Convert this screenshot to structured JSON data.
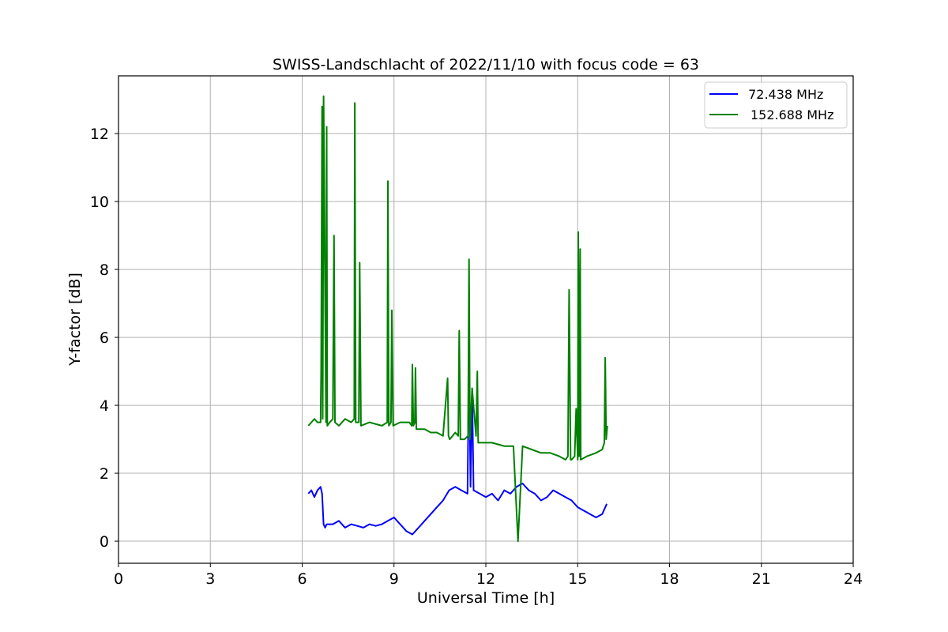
{
  "chart_data": {
    "type": "line",
    "title": "SWISS-Landschlacht of 2022/11/10 with focus code = 63",
    "xlabel": "Universal Time [h]",
    "ylabel": "Y-factor [dB]",
    "xlim": [
      0,
      24
    ],
    "ylim": [
      -0.65,
      13.7
    ],
    "xticks": [
      0,
      3,
      6,
      9,
      12,
      15,
      18,
      21,
      24
    ],
    "xtick_labels": [
      "0",
      "3",
      "6",
      "9",
      "12",
      "15",
      "18",
      "21",
      "24"
    ],
    "yticks": [
      0,
      2,
      4,
      6,
      8,
      10,
      12
    ],
    "ytick_labels": [
      "0",
      "2",
      "4",
      "6",
      "8",
      "10",
      "12"
    ],
    "grid": true,
    "legend_position": "top-right",
    "series": [
      {
        "name": " 72.438 MHz",
        "color": "#0000ff",
        "x": [
          6.2,
          6.3,
          6.4,
          6.5,
          6.6,
          6.65,
          6.7,
          6.75,
          6.8,
          7.0,
          7.2,
          7.4,
          7.6,
          7.8,
          8.0,
          8.2,
          8.4,
          8.6,
          8.8,
          9.0,
          9.2,
          9.4,
          9.6,
          9.8,
          10.0,
          10.2,
          10.4,
          10.6,
          10.8,
          11.0,
          11.2,
          11.4,
          11.45,
          11.5,
          11.55,
          11.6,
          11.8,
          12.0,
          12.2,
          12.4,
          12.6,
          12.8,
          13.0,
          13.2,
          13.4,
          13.6,
          13.8,
          14.0,
          14.2,
          14.4,
          14.6,
          14.8,
          15.0,
          15.2,
          15.4,
          15.6,
          15.8,
          15.95
        ],
        "y": [
          1.4,
          1.5,
          1.3,
          1.5,
          1.6,
          1.4,
          0.5,
          0.4,
          0.5,
          0.5,
          0.6,
          0.4,
          0.5,
          0.45,
          0.4,
          0.5,
          0.45,
          0.5,
          0.6,
          0.7,
          0.5,
          0.3,
          0.2,
          0.4,
          0.6,
          0.8,
          1.0,
          1.2,
          1.5,
          1.6,
          1.5,
          1.4,
          5.6,
          1.6,
          4.5,
          1.5,
          1.4,
          1.3,
          1.4,
          1.2,
          1.5,
          1.4,
          1.6,
          1.7,
          1.5,
          1.4,
          1.2,
          1.3,
          1.5,
          1.4,
          1.3,
          1.2,
          1.0,
          0.9,
          0.8,
          0.7,
          0.8,
          1.1
        ]
      },
      {
        "name": "152.688 MHz",
        "color": "#008000",
        "x": [
          6.2,
          6.3,
          6.4,
          6.5,
          6.6,
          6.62,
          6.65,
          6.67,
          6.7,
          6.78,
          6.8,
          6.82,
          6.9,
          7.0,
          7.04,
          7.07,
          7.2,
          7.4,
          7.6,
          7.7,
          7.72,
          7.75,
          7.85,
          7.88,
          7.92,
          8.2,
          8.6,
          8.78,
          8.8,
          8.83,
          8.9,
          8.93,
          8.97,
          9.2,
          9.5,
          9.58,
          9.6,
          9.63,
          9.68,
          9.7,
          9.73,
          10.0,
          10.2,
          10.4,
          10.6,
          10.75,
          10.78,
          10.82,
          11.0,
          11.1,
          11.13,
          11.17,
          11.3,
          11.42,
          11.45,
          11.48,
          11.55,
          11.68,
          11.72,
          11.75,
          12.0,
          12.2,
          12.6,
          12.9,
          13.05,
          13.2,
          13.5,
          13.8,
          14.1,
          14.4,
          14.6,
          14.68,
          14.72,
          14.77,
          14.8,
          14.9,
          14.95,
          15.0,
          15.02,
          15.05,
          15.08,
          15.1,
          15.3,
          15.6,
          15.8,
          15.87,
          15.9,
          15.93,
          15.97
        ],
        "y": [
          3.4,
          3.5,
          3.6,
          3.5,
          3.5,
          5.0,
          12.8,
          3.6,
          13.1,
          3.5,
          12.2,
          3.4,
          3.5,
          3.6,
          9.0,
          3.5,
          3.4,
          3.6,
          3.5,
          3.6,
          12.9,
          3.5,
          3.5,
          8.2,
          3.4,
          3.5,
          3.4,
          3.5,
          10.6,
          3.4,
          3.5,
          6.8,
          3.4,
          3.5,
          3.5,
          3.4,
          5.2,
          3.4,
          3.5,
          5.1,
          3.3,
          3.3,
          3.2,
          3.2,
          3.1,
          4.8,
          3.1,
          3.0,
          3.2,
          3.1,
          6.2,
          3.0,
          3.0,
          3.1,
          8.3,
          3.0,
          4.5,
          3.1,
          5.0,
          2.9,
          2.9,
          2.9,
          2.8,
          2.8,
          0.0,
          2.8,
          2.7,
          2.6,
          2.6,
          2.5,
          2.4,
          2.5,
          7.4,
          2.4,
          2.4,
          2.5,
          3.9,
          2.4,
          9.1,
          2.5,
          8.6,
          2.4,
          2.5,
          2.6,
          2.7,
          2.9,
          5.4,
          3.0,
          3.4
        ]
      }
    ]
  }
}
